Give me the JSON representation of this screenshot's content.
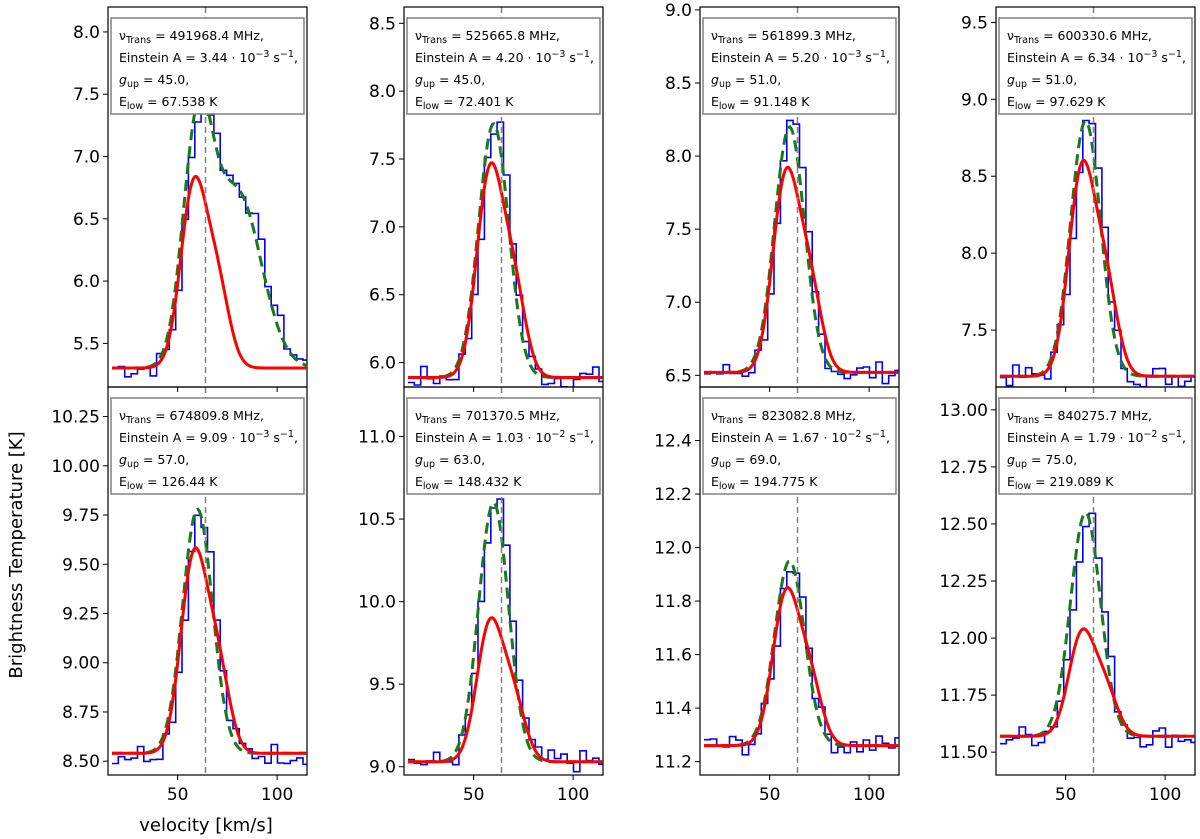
{
  "colors": {
    "observed": "#0000ff",
    "model_dashed": "#1a7a1a",
    "fit": "#ff0000",
    "vline": "#808080",
    "annotation_border": "#808080"
  },
  "chart_data": {
    "type": "line",
    "xlabel": "velocity [km/s]",
    "ylabel": "Brightness Temperature [K]",
    "xlim": [
      15,
      115
    ],
    "xticks": [
      50,
      100
    ],
    "vline_x": 64,
    "series_names": [
      "observed spectrum",
      "model (dashed)",
      "fit"
    ],
    "panels": [
      {
        "id": "p1",
        "ylim": [
          5.15,
          8.2
        ],
        "yticks": [
          5.5,
          6.0,
          6.5,
          7.0,
          7.5,
          8.0
        ],
        "ytick_labels": [
          "5.5",
          "6.0",
          "6.5",
          "7.0",
          "7.5",
          "8.0"
        ],
        "annotation": {
          "nu": "491968.4 MHz,",
          "einstein_mant": "3.44",
          "einstein_exp": "−3",
          "gup": "45.0,",
          "elow": "67.538 K"
        },
        "peak_g": 7.1,
        "peak_r": 7.1,
        "secondary": {
          "x": 80,
          "amp": 1.4,
          "sigma": 12
        },
        "obs_scale": 1.05
      },
      {
        "id": "p2",
        "ylim": [
          5.82,
          8.62
        ],
        "yticks": [
          6.0,
          6.5,
          7.0,
          7.5,
          8.0,
          8.5
        ],
        "ytick_labels": [
          "6.0",
          "6.5",
          "7.0",
          "7.5",
          "8.0",
          "8.5"
        ],
        "annotation": {
          "nu": "525665.8 MHz,",
          "einstein_mant": "4.20",
          "einstein_exp": "−3",
          "gup": "45.0,",
          "elow": "72.401 K"
        },
        "base": 5.89,
        "peak_g": 7.76,
        "peak_r": 7.74
      },
      {
        "id": "p3",
        "ylim": [
          6.42,
          9.02
        ],
        "yticks": [
          6.5,
          7.0,
          7.5,
          8.0,
          8.5,
          9.0
        ],
        "ytick_labels": [
          "6.5",
          "7.0",
          "7.5",
          "8.0",
          "8.5",
          "9.0"
        ],
        "annotation": {
          "nu": "561899.3 MHz,",
          "einstein_mant": "5.20",
          "einstein_exp": "−3",
          "gup": "51.0,",
          "elow": "91.148 K"
        },
        "base": 6.52,
        "peak_g": 8.2,
        "peak_r": 8.16
      },
      {
        "id": "p4",
        "ylim": [
          7.13,
          9.6
        ],
        "yticks": [
          7.5,
          8.0,
          8.5,
          9.0,
          9.5
        ],
        "ytick_labels": [
          "7.5",
          "8.0",
          "8.5",
          "9.0",
          "9.5"
        ],
        "annotation": {
          "nu": "600330.6 MHz,",
          "einstein_mant": "6.34",
          "einstein_exp": "−3",
          "gup": "51.0,",
          "elow": "97.629 K"
        },
        "base": 7.2,
        "peak_g": 8.86,
        "peak_r": 8.84
      },
      {
        "id": "p5",
        "ylim": [
          8.43,
          10.4
        ],
        "yticks": [
          8.5,
          8.75,
          9.0,
          9.25,
          9.5,
          9.75,
          10.0,
          10.25
        ],
        "ytick_labels": [
          "8.50",
          "8.75",
          "9.00",
          "9.25",
          "9.50",
          "9.75",
          "10.00",
          "10.25"
        ],
        "annotation": {
          "nu": "674809.8 MHz,",
          "einstein_mant": "9.09",
          "einstein_exp": "−3",
          "gup": "57.0,",
          "elow": "126.44 K"
        },
        "base": 8.54,
        "peak_g": 9.78,
        "peak_r": 9.76
      },
      {
        "id": "p6",
        "ylim": [
          8.95,
          11.3
        ],
        "yticks": [
          9.0,
          9.5,
          10.0,
          10.5,
          11.0
        ],
        "ytick_labels": [
          "9.0",
          "9.5",
          "10.0",
          "10.5",
          "11.0"
        ],
        "annotation": {
          "nu": "701370.5 MHz,",
          "einstein_mant": "1.03",
          "einstein_exp": "−2",
          "gup": "63.0,",
          "elow": "148.432 K"
        },
        "base": 9.03,
        "peak_g": 10.6,
        "peak_r": 10.05
      },
      {
        "id": "p7",
        "ylim": [
          11.15,
          12.6
        ],
        "yticks": [
          11.2,
          11.4,
          11.6,
          11.8,
          12.0,
          12.2,
          12.4
        ],
        "ytick_labels": [
          "11.2",
          "11.4",
          "11.6",
          "11.8",
          "12.0",
          "12.2",
          "12.4"
        ],
        "annotation": {
          "nu": "823082.8 MHz,",
          "einstein_mant": "1.67",
          "einstein_exp": "−2",
          "gup": "69.0,",
          "elow": "194.775 K"
        },
        "base": 11.26,
        "peak_g": 11.95,
        "peak_r": 11.95
      },
      {
        "id": "p8",
        "ylim": [
          11.4,
          13.1
        ],
        "yticks": [
          11.5,
          11.75,
          12.0,
          12.25,
          12.5,
          12.75,
          13.0
        ],
        "ytick_labels": [
          "11.50",
          "11.75",
          "12.00",
          "12.25",
          "12.50",
          "12.75",
          "13.00"
        ],
        "annotation": {
          "nu": "840275.7 MHz,",
          "einstein_mant": "1.79",
          "einstein_exp": "−2",
          "gup": "75.0,",
          "elow": "219.089 K"
        },
        "base": 11.57,
        "peak_g": 12.55,
        "peak_r": 12.12
      }
    ]
  }
}
